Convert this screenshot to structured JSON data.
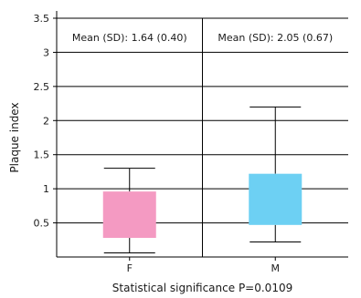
{
  "chart_data": {
    "type": "box",
    "title": "",
    "ylabel": "Plaque index",
    "xlabel": "",
    "ylim": [
      0,
      3.5
    ],
    "yticks": [
      "0.5",
      "1",
      "1.5",
      "2",
      "2.5",
      "3",
      "3.5"
    ],
    "ytick_values": [
      0.5,
      1,
      1.5,
      2,
      2.5,
      3,
      3.5
    ],
    "grid": true,
    "categories": [
      "F",
      "M"
    ],
    "boxes": [
      {
        "category": "F",
        "whisker_low": 0.06,
        "q1": 0.28,
        "q3": 0.96,
        "whisker_high": 1.3,
        "color": "#f49ac2",
        "annotation": "Mean (SD): 1.64 (0.40)"
      },
      {
        "category": "M",
        "whisker_low": 0.22,
        "q1": 0.47,
        "q3": 1.22,
        "whisker_high": 2.2,
        "color": "#6dd0f3",
        "annotation": "Mean (SD): 2.05 (0.67)"
      }
    ],
    "caption": "Statistical significance P=0.0109"
  }
}
